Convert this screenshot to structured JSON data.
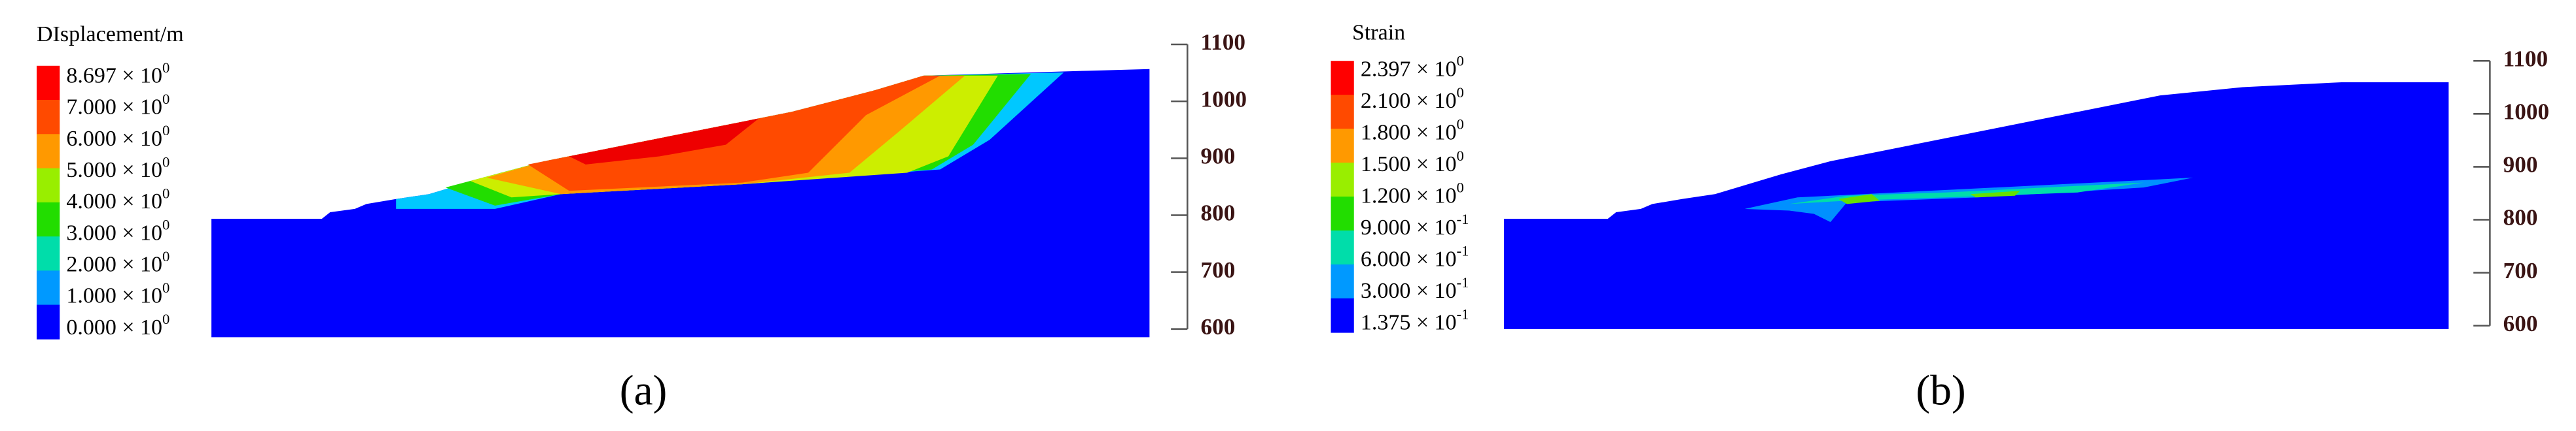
{
  "panels": [
    {
      "label": "(a)",
      "legend": {
        "title": "DIsplacement/m",
        "colors": [
          "#ff0000",
          "#ff4a00",
          "#ff9900",
          "#99ee00",
          "#22dd00",
          "#00ddaa",
          "#0099ff",
          "#0000ff"
        ],
        "entries": [
          {
            "base": "8.697 × 10",
            "exponent": "0"
          },
          {
            "base": "7.000 × 10",
            "exponent": "0"
          },
          {
            "base": "6.000 × 10",
            "exponent": "0"
          },
          {
            "base": "5.000 × 10",
            "exponent": "0"
          },
          {
            "base": "4.000 × 10",
            "exponent": "0"
          },
          {
            "base": "3.000 × 10",
            "exponent": "0"
          },
          {
            "base": "2.000 × 10",
            "exponent": "0"
          },
          {
            "base": "1.000 × 10",
            "exponent": "0"
          },
          {
            "base": "0.000 × 10",
            "exponent": "0"
          }
        ]
      },
      "axis": {
        "range": [
          600,
          1100
        ],
        "ticks": [
          600,
          700,
          800,
          900,
          1000,
          1100
        ]
      }
    },
    {
      "label": "(b)",
      "legend": {
        "title": "Strain",
        "colors": [
          "#ff0000",
          "#ff4a00",
          "#ff9900",
          "#99ee00",
          "#22dd00",
          "#00ddaa",
          "#0099ff",
          "#0000ff"
        ],
        "entries": [
          {
            "base": "2.397 × 10",
            "exponent": "0"
          },
          {
            "base": "2.100 × 10",
            "exponent": "0"
          },
          {
            "base": "1.800 × 10",
            "exponent": "0"
          },
          {
            "base": "1.500 × 10",
            "exponent": "0"
          },
          {
            "base": "1.200 × 10",
            "exponent": "0"
          },
          {
            "base": "9.000 × 10",
            "exponent": "-1"
          },
          {
            "base": "6.000 × 10",
            "exponent": "-1"
          },
          {
            "base": "3.000 × 10",
            "exponent": "-1"
          },
          {
            "base": "1.375 × 10",
            "exponent": "-1"
          }
        ]
      },
      "axis": {
        "range": [
          600,
          1100
        ],
        "ticks": [
          600,
          700,
          800,
          900,
          1000,
          1100
        ]
      }
    }
  ]
}
